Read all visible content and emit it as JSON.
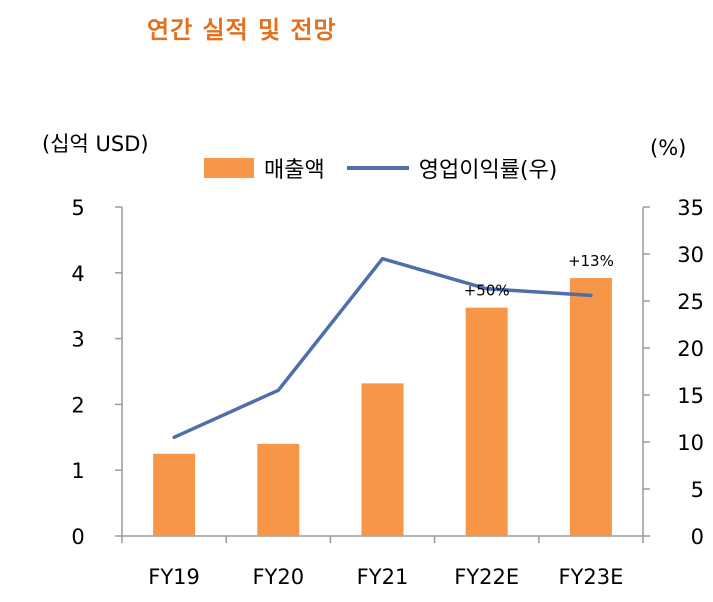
{
  "chart_data": {
    "type": "bar",
    "title": "연간 실적 및 전망",
    "categories": [
      "FY19",
      "FY20",
      "FY21",
      "FY22E",
      "FY23E"
    ],
    "series": [
      {
        "name": "매출액",
        "type": "bar",
        "axis": "left",
        "color": "#f79646",
        "values": [
          1.25,
          1.4,
          2.32,
          3.47,
          3.92
        ]
      },
      {
        "name": "영업이익률(우)",
        "type": "line",
        "axis": "right",
        "color": "#4f6fa8",
        "values": [
          10.5,
          15.5,
          29.5,
          26.3,
          25.6
        ]
      }
    ],
    "y_left": {
      "label": "(십억 USD)",
      "ylim": [
        0,
        5
      ],
      "ticks": [
        "0",
        "1",
        "2",
        "3",
        "4",
        "5"
      ]
    },
    "y_right": {
      "label": "(%)",
      "ylim": [
        0,
        35
      ],
      "ticks": [
        "0",
        "5",
        "10",
        "15",
        "20",
        "25",
        "30",
        "35"
      ]
    },
    "annotations": [
      {
        "category": "FY22E",
        "text": "+50%"
      },
      {
        "category": "FY23E",
        "text": "+13%"
      }
    ],
    "legend_position": "top-center",
    "grid": false
  }
}
